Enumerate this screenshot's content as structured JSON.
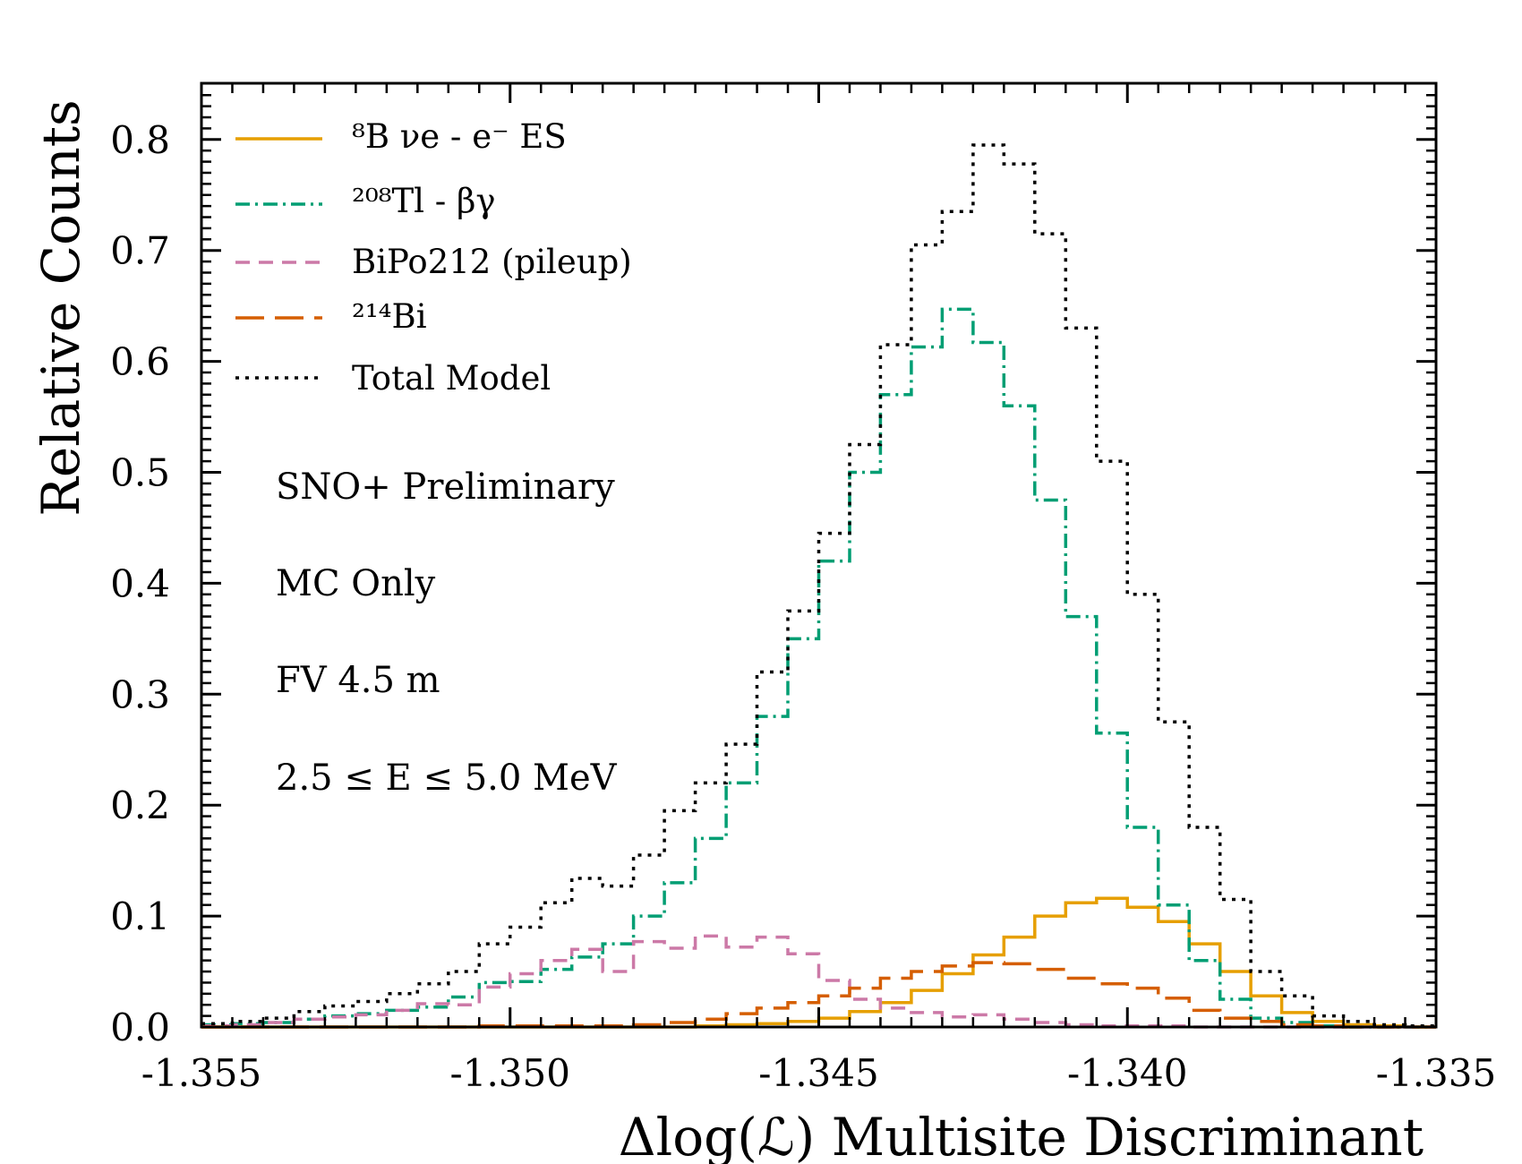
{
  "chart_data": {
    "type": "histogram-step",
    "xlabel": "Δlog(ℒ) Multisite Discriminant",
    "ylabel": "Relative Counts",
    "xlim": [
      -1.355,
      -1.335
    ],
    "ylim": [
      0,
      0.85
    ],
    "x_ticks": [
      -1.355,
      -1.35,
      -1.345,
      -1.34,
      -1.335
    ],
    "x_tick_labels": [
      "-1.355",
      "-1.350",
      "-1.345",
      "-1.340",
      "-1.335"
    ],
    "y_ticks": [
      0,
      0.1,
      0.2,
      0.3,
      0.4,
      0.5,
      0.6,
      0.7,
      0.8
    ],
    "y_tick_labels": [
      "0.0",
      "0.1",
      "0.2",
      "0.3",
      "0.4",
      "0.5",
      "0.6",
      "0.7",
      "0.8"
    ],
    "legend_placement": "top-left",
    "bin_edges": [
      -1.355,
      -1.3545,
      -1.354,
      -1.3535,
      -1.353,
      -1.3525,
      -1.352,
      -1.3515,
      -1.351,
      -1.3505,
      -1.35,
      -1.3495,
      -1.349,
      -1.3485,
      -1.348,
      -1.3475,
      -1.347,
      -1.3465,
      -1.346,
      -1.3455,
      -1.345,
      -1.3445,
      -1.344,
      -1.3435,
      -1.343,
      -1.3425,
      -1.342,
      -1.3415,
      -1.341,
      -1.3405,
      -1.34,
      -1.3395,
      -1.339,
      -1.3385,
      -1.338,
      -1.3375,
      -1.337,
      -1.3365,
      -1.336,
      -1.3355,
      -1.335
    ],
    "series": [
      {
        "name": "⁸B νe - e⁻ ES",
        "color": "#E69F00",
        "dash": "solid",
        "values": [
          0,
          0,
          0,
          0,
          0,
          0,
          0,
          0,
          0,
          0,
          0,
          0,
          0,
          0,
          0,
          0,
          0.001,
          0.002,
          0.003,
          0.005,
          0.008,
          0.014,
          0.022,
          0.033,
          0.048,
          0.065,
          0.081,
          0.1,
          0.112,
          0.116,
          0.108,
          0.095,
          0.075,
          0.05,
          0.028,
          0.013,
          0.005,
          0.002,
          0.001,
          0
        ]
      },
      {
        "name": "²⁰⁸Tl - βγ",
        "color": "#009E73",
        "dash": "dashdot",
        "values": [
          0.002,
          0.003,
          0.004,
          0.007,
          0.01,
          0.012,
          0.015,
          0.018,
          0.027,
          0.04,
          0.041,
          0.052,
          0.063,
          0.075,
          0.1,
          0.13,
          0.17,
          0.22,
          0.28,
          0.35,
          0.42,
          0.5,
          0.57,
          0.613,
          0.647,
          0.617,
          0.56,
          0.475,
          0.37,
          0.265,
          0.18,
          0.11,
          0.06,
          0.025,
          0.008,
          0.004,
          0.001,
          0,
          0,
          0
        ]
      },
      {
        "name": "BiPo212 (pileup)",
        "color": "#CC79A7",
        "dash": "dashed",
        "values": [
          0.001,
          0.002,
          0.004,
          0.007,
          0.009,
          0.011,
          0.015,
          0.021,
          0.02,
          0.036,
          0.048,
          0.06,
          0.07,
          0.05,
          0.077,
          0.071,
          0.082,
          0.072,
          0.081,
          0.066,
          0.042,
          0.025,
          0.017,
          0.013,
          0.009,
          0.011,
          0.007,
          0.004,
          0.002,
          0.001,
          0.001,
          0.001,
          0,
          0,
          0,
          0,
          0,
          0,
          0,
          0
        ]
      },
      {
        "name": "²¹⁴Bi",
        "color": "#D55E00",
        "dash": "longdash",
        "values": [
          0,
          0,
          0,
          0,
          0,
          0,
          0,
          0,
          0,
          0.001,
          0.001,
          0.001,
          0.001,
          0.001,
          0.002,
          0.004,
          0.007,
          0.012,
          0.017,
          0.022,
          0.028,
          0.035,
          0.044,
          0.05,
          0.055,
          0.058,
          0.057,
          0.052,
          0.044,
          0.039,
          0.035,
          0.026,
          0.015,
          0.008,
          0.005,
          0.002,
          0.001,
          0,
          0,
          0
        ]
      },
      {
        "name": "Total Model",
        "color": "#000000",
        "dash": "dotted",
        "values": [
          0.003,
          0.005,
          0.008,
          0.014,
          0.019,
          0.023,
          0.03,
          0.039,
          0.05,
          0.075,
          0.09,
          0.112,
          0.134,
          0.127,
          0.155,
          0.195,
          0.22,
          0.255,
          0.32,
          0.375,
          0.445,
          0.525,
          0.615,
          0.705,
          0.735,
          0.795,
          0.778,
          0.715,
          0.63,
          0.51,
          0.39,
          0.275,
          0.18,
          0.115,
          0.05,
          0.028,
          0.01,
          0.005,
          0.002,
          0.001
        ]
      }
    ],
    "annotations": [
      "SNO+ Preliminary",
      "MC Only",
      "FV 4.5 m",
      "2.5 ≤ E ≤ 5.0 MeV"
    ]
  }
}
